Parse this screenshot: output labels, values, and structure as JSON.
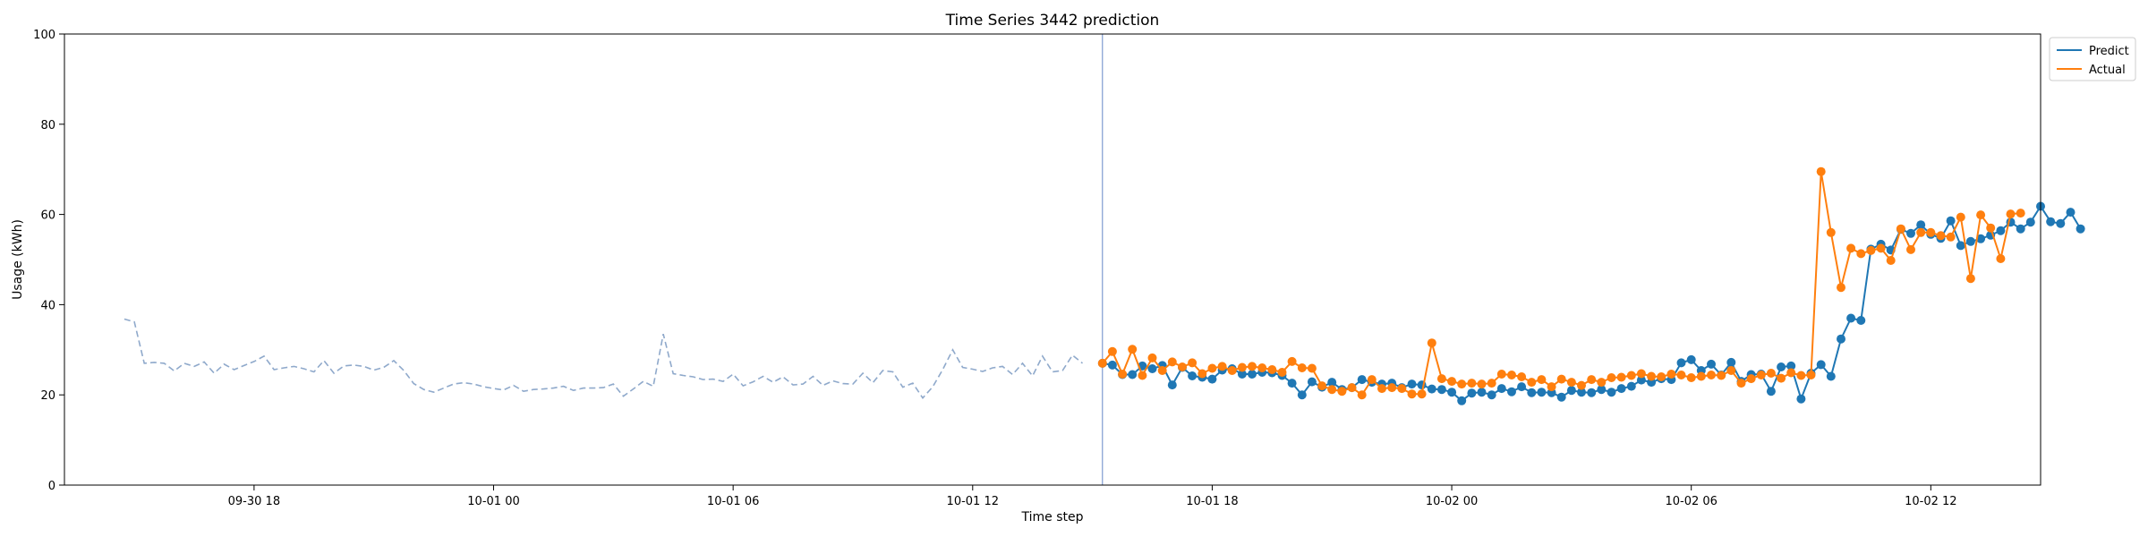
{
  "chart_data": {
    "type": "line",
    "title": "Time Series 3442 prediction",
    "xlabel": "Time step",
    "ylabel": "Usage (kWh)",
    "ylim": [
      0,
      100
    ],
    "yticks": [
      0,
      20,
      40,
      60,
      80,
      100
    ],
    "xlim_hours": [
      -4.75,
      44.75
    ],
    "xticks": [
      {
        "label": "09-30 18",
        "hour": 0
      },
      {
        "label": "10-01 00",
        "hour": 6
      },
      {
        "label": "10-01 06",
        "hour": 12
      },
      {
        "label": "10-01 12",
        "hour": 18
      },
      {
        "label": "10-01 18",
        "hour": 24
      },
      {
        "label": "10-02 00",
        "hour": 30
      },
      {
        "label": "10-02 06",
        "hour": 36
      },
      {
        "label": "10-02 12",
        "hour": 42
      }
    ],
    "step_hours": 0.25,
    "forecast_start_hour": 21.25,
    "legend": {
      "position": "top-right",
      "entries": [
        "Predict",
        "Actual"
      ]
    },
    "colors": {
      "history": "#8fa9cb",
      "predict": "#1f77b4",
      "actual": "#ff7f0e",
      "split": "#7f9bd1"
    },
    "history": {
      "start_hour": -3.25,
      "values": [
        36.8,
        36.2,
        27.0,
        27.2,
        27.0,
        25.3,
        27.0,
        26.3,
        27.3,
        24.8,
        26.8,
        25.6,
        26.5,
        27.4,
        28.6,
        25.6,
        26.0,
        26.3,
        25.8,
        25.1,
        27.6,
        24.8,
        26.4,
        26.6,
        26.3,
        25.5,
        26.1,
        27.6,
        25.4,
        22.5,
        21.2,
        20.6,
        21.5,
        22.4,
        22.7,
        22.4,
        21.8,
        21.4,
        21.1,
        22.1,
        20.8,
        21.2,
        21.3,
        21.5,
        21.9,
        21.0,
        21.5,
        21.5,
        21.6,
        22.4,
        19.7,
        21.3,
        23.0,
        21.9,
        33.5,
        24.7,
        24.3,
        24.0,
        23.4,
        23.5,
        23.0,
        24.6,
        22.0,
        22.9,
        24.1,
        22.8,
        24.0,
        22.2,
        22.4,
        24.1,
        22.1,
        23.1,
        22.5,
        22.4,
        24.8,
        22.7,
        25.4,
        25.1,
        21.7,
        22.6,
        19.3,
        21.8,
        25.6,
        30.0,
        26.1,
        25.7,
        25.2,
        26.0,
        26.3,
        24.5,
        27.0,
        24.2,
        28.6,
        25.1,
        25.4,
        28.8,
        27.0
      ]
    },
    "series": [
      {
        "name": "Predict",
        "values": [
          27.0,
          26.6,
          24.5,
          24.5,
          26.4,
          25.8,
          26.5,
          22.2,
          26.1,
          24.2,
          23.9,
          23.5,
          25.5,
          25.8,
          24.6,
          24.6,
          25.0,
          24.9,
          24.3,
          22.6,
          20.0,
          22.9,
          21.7,
          22.8,
          21.2,
          21.6,
          23.4,
          22.8,
          22.4,
          22.6,
          21.6,
          22.4,
          22.2,
          21.3,
          21.2,
          20.6,
          18.7,
          20.4,
          20.6,
          20.0,
          21.4,
          20.7,
          21.8,
          20.5,
          20.6,
          20.5,
          19.5,
          21.0,
          20.6,
          20.5,
          21.2,
          20.6,
          21.4,
          21.9,
          23.3,
          22.8,
          23.6,
          23.4,
          27.1,
          27.8,
          25.4,
          26.8,
          24.4,
          27.2,
          23.0,
          24.5,
          24.6,
          20.8,
          26.2,
          26.4,
          19.1,
          24.8,
          26.7,
          24.1,
          32.4,
          37.0,
          36.5,
          52.3,
          53.4,
          52.1,
          56.7,
          55.8,
          57.7,
          55.6,
          54.7,
          58.6,
          53.1,
          54.0,
          54.6,
          55.4,
          56.4,
          58.3,
          56.8,
          58.3,
          61.8,
          58.4,
          58.0,
          60.5,
          56.8
        ]
      },
      {
        "name": "Actual",
        "values": [
          27.0,
          29.6,
          24.6,
          30.1,
          24.3,
          28.2,
          25.4,
          27.3,
          26.2,
          27.1,
          24.7,
          25.9,
          26.3,
          25.4,
          26.1,
          26.3,
          26.0,
          25.6,
          25.0,
          27.4,
          26.0,
          25.9,
          22.0,
          21.2,
          20.8,
          21.6,
          20.0,
          23.4,
          21.4,
          21.6,
          21.4,
          20.2,
          20.2,
          31.5,
          23.6,
          23.0,
          22.4,
          22.6,
          22.4,
          22.6,
          24.6,
          24.4,
          24.0,
          22.8,
          23.4,
          21.8,
          23.5,
          22.8,
          22.1,
          23.4,
          22.8,
          23.8,
          23.9,
          24.3,
          24.7,
          24.1,
          24.0,
          24.6,
          24.4,
          23.8,
          24.1,
          24.4,
          24.3,
          25.4,
          22.6,
          23.6,
          24.4,
          24.8,
          23.7,
          24.9,
          24.3,
          24.4,
          69.5,
          56.0,
          43.8,
          52.5,
          51.3,
          52.0,
          52.5,
          49.8,
          56.8,
          52.2,
          56.0,
          56.0,
          55.3,
          55.0,
          59.4,
          45.8,
          59.9,
          57.0,
          50.2,
          60.1,
          60.3
        ]
      }
    ]
  }
}
